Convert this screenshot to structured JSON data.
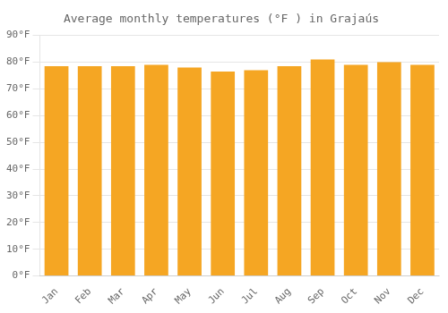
{
  "chart_data": {
    "type": "bar",
    "title": "Average monthly temperatures (°F ) in Grajaús",
    "categories": [
      "Jan",
      "Feb",
      "Mar",
      "Apr",
      "May",
      "Jun",
      "Jul",
      "Aug",
      "Sep",
      "Oct",
      "Nov",
      "Dec"
    ],
    "values": [
      78.5,
      78.5,
      78.5,
      79.0,
      78.0,
      76.5,
      77.0,
      78.5,
      81.0,
      79.0,
      80.0,
      79.0
    ],
    "color": "#F5A623",
    "ylim": [
      0,
      90
    ],
    "yticks": [
      {
        "value": 0,
        "label": "0°F"
      },
      {
        "value": 10,
        "label": "10°F"
      },
      {
        "value": 20,
        "label": "20°F"
      },
      {
        "value": 30,
        "label": "30°F"
      },
      {
        "value": 40,
        "label": "40°F"
      },
      {
        "value": 50,
        "label": "50°F"
      },
      {
        "value": 60,
        "label": "60°F"
      },
      {
        "value": 70,
        "label": "70°F"
      },
      {
        "value": 80,
        "label": "80°F"
      },
      {
        "value": 90,
        "label": "90°F"
      }
    ],
    "grid": true
  }
}
